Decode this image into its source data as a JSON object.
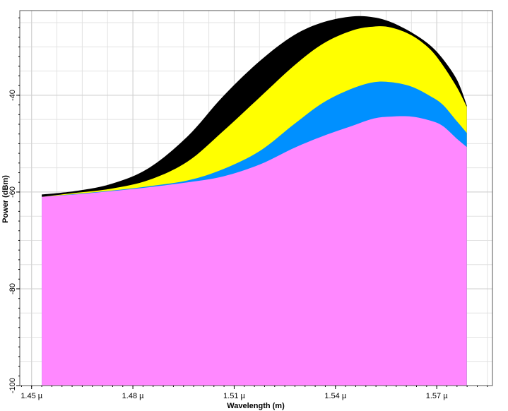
{
  "chart_data": {
    "type": "area",
    "title": "",
    "xlabel": "Wavelength (m)",
    "ylabel": "Power (dBm)",
    "xlim": [
      1.4465,
      1.5865
    ],
    "ylim": [
      -100,
      -22.5
    ],
    "x_ticks": [
      {
        "value": 1.45,
        "label": "1.45 µ"
      },
      {
        "value": 1.48,
        "label": "1.48 µ"
      },
      {
        "value": 1.51,
        "label": "1.51 µ"
      },
      {
        "value": 1.54,
        "label": "1.54 µ"
      },
      {
        "value": 1.57,
        "label": "1.57 µ"
      }
    ],
    "y_ticks": [
      {
        "value": -40,
        "label": "-40"
      },
      {
        "value": -60,
        "label": "-60"
      },
      {
        "value": -80,
        "label": "-80"
      },
      {
        "value": -100,
        "label": "-100"
      }
    ],
    "grid": true,
    "x": [
      1.453,
      1.4628,
      1.4737,
      1.4848,
      1.4962,
      1.5066,
      1.5176,
      1.5277,
      1.5364,
      1.545,
      1.5514,
      1.5565,
      1.5625,
      1.5679,
      1.5717,
      1.576,
      1.5789
    ],
    "series": [
      {
        "color": "#000000",
        "values": [
          -60.5,
          -59.8,
          -58.3,
          -55.0,
          -48.5,
          -40.3,
          -32.9,
          -27.6,
          -24.9,
          -23.7,
          -23.9,
          -24.9,
          -27.0,
          -29.6,
          -32.4,
          -36.8,
          -42.1
        ]
      },
      {
        "color": "#ffff00",
        "values": [
          -61.0,
          -60.2,
          -59.3,
          -57.5,
          -53.7,
          -47.5,
          -40.4,
          -33.9,
          -29.3,
          -26.6,
          -25.8,
          -26.0,
          -27.6,
          -30.4,
          -33.7,
          -38.4,
          -42.4
        ]
      },
      {
        "color": "#0090ff",
        "values": [
          -61.0,
          -60.4,
          -59.7,
          -58.8,
          -57.6,
          -55.3,
          -51.5,
          -46.0,
          -41.5,
          -38.6,
          -37.3,
          -37.3,
          -38.2,
          -40.1,
          -41.9,
          -45.4,
          -47.8
        ]
      },
      {
        "color": "#ff88ff",
        "values": [
          -61.0,
          -60.5,
          -59.8,
          -59.0,
          -58.0,
          -56.8,
          -54.3,
          -50.9,
          -48.4,
          -46.3,
          -44.8,
          -44.4,
          -44.4,
          -45.2,
          -46.3,
          -49.0,
          -50.7
        ]
      }
    ]
  }
}
